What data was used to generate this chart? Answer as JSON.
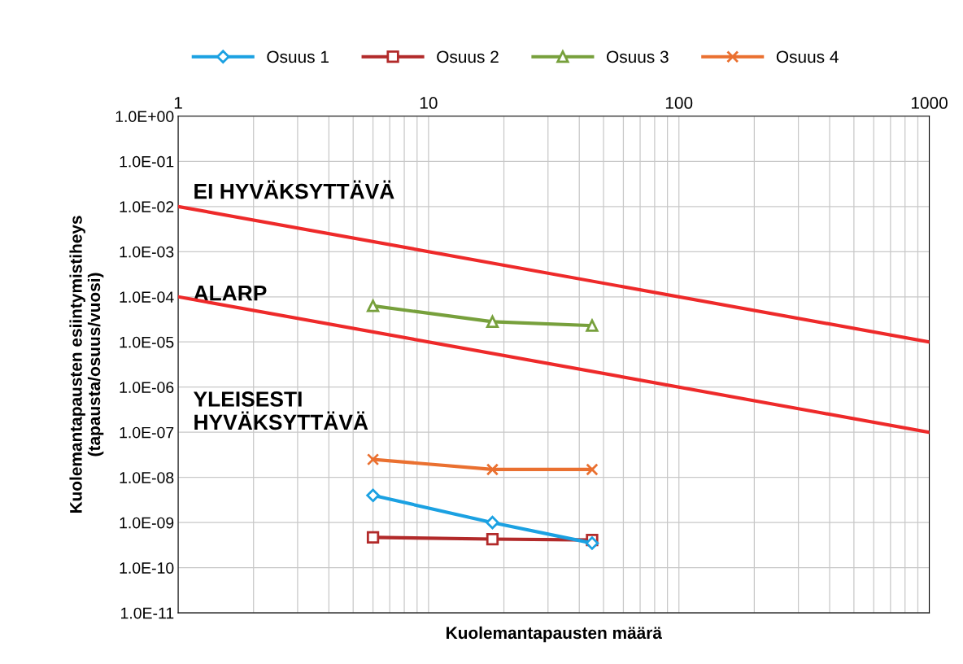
{
  "chart_data": {
    "type": "line",
    "xlabel": "Kuolemantapausten määrä",
    "ylabel": "Kuolemantapausten esiintymistiheys\n(tapausta/osuus/vuosi)",
    "log": "xy",
    "grid": true,
    "legend": "top",
    "xlim": [
      1,
      1000
    ],
    "xticks": [
      1,
      10,
      100,
      1000
    ],
    "ylim": [
      1e-11,
      1
    ],
    "yticks": [
      {
        "value": 1,
        "label": "1.0E+00"
      },
      {
        "value": 0.1,
        "label": "1.0E-01"
      },
      {
        "value": 0.01,
        "label": "1.0E-02"
      },
      {
        "value": 0.001,
        "label": "1.0E-03"
      },
      {
        "value": 0.0001,
        "label": "1.0E-04"
      },
      {
        "value": 1e-05,
        "label": "1.0E-05"
      },
      {
        "value": 1e-06,
        "label": "1.0E-06"
      },
      {
        "value": 1e-07,
        "label": "1.0E-07"
      },
      {
        "value": 1e-08,
        "label": "1.0E-08"
      },
      {
        "value": 1e-09,
        "label": "1.0E-09"
      },
      {
        "value": 1e-10,
        "label": "1.0E-10"
      },
      {
        "value": 1e-11,
        "label": "1.0E-11"
      }
    ],
    "series": [
      {
        "name": "Osuus 1",
        "color": "#1ba1e2",
        "marker": "diamond",
        "x": [
          6,
          18,
          45
        ],
        "values": [
          4e-09,
          1e-09,
          3.5e-10
        ]
      },
      {
        "name": "Osuus 2",
        "color": "#b22a2a",
        "marker": "square",
        "x": [
          6,
          18,
          45
        ],
        "values": [
          4.7e-10,
          4.3e-10,
          4.1e-10
        ]
      },
      {
        "name": "Osuus 3",
        "color": "#77a03c",
        "marker": "triangle",
        "x": [
          6,
          18,
          45
        ],
        "values": [
          6.3e-05,
          2.8e-05,
          2.3e-05
        ]
      },
      {
        "name": "Osuus 4",
        "color": "#ea7030",
        "marker": "cross",
        "x": [
          6,
          18,
          45
        ],
        "values": [
          2.5e-08,
          1.5e-08,
          1.5e-08
        ]
      },
      {
        "color": "#ee2a2a",
        "marker": "none",
        "x": [
          1,
          1000
        ],
        "values": [
          0.01,
          1e-05
        ]
      },
      {
        "color": "#ee2a2a",
        "marker": "none",
        "x": [
          1,
          1000
        ],
        "values": [
          0.0001,
          1e-07
        ]
      }
    ],
    "annotations": [
      "EI HYVÄKSYTTÄVÄ",
      "ALARP",
      "YLEISESTI\nHYVÄKSYTTÄVÄ"
    ]
  }
}
